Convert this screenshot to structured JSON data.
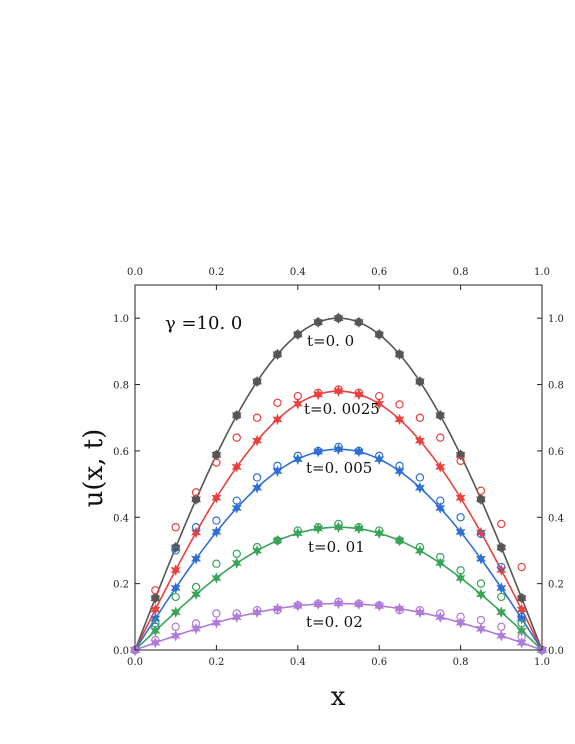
{
  "chart_data": {
    "type": "line",
    "xlabel": "x",
    "ylabel": "u(x, t)",
    "xlim": [
      0.0,
      1.0
    ],
    "ylim": [
      0.0,
      1.1
    ],
    "xticks": [
      "0.0",
      "0.2",
      "0.4",
      "0.6",
      "0.8",
      "1.0"
    ],
    "yticks": [
      "0.0",
      "0.2",
      "0.4",
      "0.6",
      "0.8",
      "1.0"
    ],
    "parameter_label": "γ =10. 0",
    "marker_x": [
      0.0,
      0.05,
      0.1,
      0.15,
      0.2,
      0.25,
      0.3,
      0.35,
      0.4,
      0.45,
      0.5,
      0.55,
      0.6,
      0.65,
      0.7,
      0.75,
      0.8,
      0.85,
      0.9,
      0.95,
      1.0
    ],
    "series": [
      {
        "label": "t=0. 0",
        "amplitude": 1.0,
        "color": "#555555",
        "open_circles": [
          0.0,
          0.157,
          0.309,
          0.454,
          0.588,
          0.707,
          0.809,
          0.891,
          0.951,
          0.988,
          1.0,
          0.988,
          0.951,
          0.891,
          0.809,
          0.707,
          0.588,
          0.454,
          0.309,
          0.157,
          0.0
        ],
        "stars": [
          0.0,
          0.156,
          0.309,
          0.454,
          0.588,
          0.707,
          0.809,
          0.891,
          0.951,
          0.988,
          1.0,
          0.988,
          0.951,
          0.891,
          0.809,
          0.707,
          0.588,
          0.454,
          0.309,
          0.156,
          0.0
        ]
      },
      {
        "label": "t=0. 0025",
        "amplitude": 0.78,
        "color": "#e8413e",
        "open_circles": [
          0.0,
          0.18,
          0.37,
          0.475,
          0.565,
          0.64,
          0.7,
          0.745,
          0.765,
          0.775,
          0.785,
          0.775,
          0.765,
          0.74,
          0.7,
          0.64,
          0.57,
          0.48,
          0.38,
          0.25,
          0.0
        ],
        "stars": [
          0.0,
          0.122,
          0.241,
          0.354,
          0.459,
          0.552,
          0.631,
          0.695,
          0.742,
          0.77,
          0.78,
          0.77,
          0.742,
          0.695,
          0.631,
          0.552,
          0.459,
          0.354,
          0.241,
          0.122,
          0.0
        ]
      },
      {
        "label": "t=0. 005",
        "amplitude": 0.605,
        "color": "#2f6fd4",
        "open_circles": [
          0.0,
          0.07,
          0.3,
          0.37,
          0.39,
          0.45,
          0.52,
          0.555,
          0.585,
          0.6,
          0.612,
          0.6,
          0.585,
          0.555,
          0.52,
          0.45,
          0.4,
          0.35,
          0.25,
          0.1,
          0.0
        ],
        "stars": [
          0.0,
          0.095,
          0.187,
          0.275,
          0.356,
          0.428,
          0.489,
          0.539,
          0.575,
          0.598,
          0.605,
          0.598,
          0.575,
          0.539,
          0.489,
          0.428,
          0.356,
          0.275,
          0.187,
          0.095,
          0.0
        ]
      },
      {
        "label": "t=0. 01",
        "amplitude": 0.37,
        "color": "#3aa35a",
        "open_circles": [
          0.0,
          0.08,
          0.16,
          0.19,
          0.26,
          0.29,
          0.31,
          0.33,
          0.36,
          0.37,
          0.38,
          0.37,
          0.36,
          0.33,
          0.31,
          0.28,
          0.24,
          0.2,
          0.16,
          0.08,
          0.0
        ],
        "stars": [
          0.0,
          0.058,
          0.114,
          0.168,
          0.217,
          0.262,
          0.299,
          0.33,
          0.352,
          0.366,
          0.37,
          0.366,
          0.352,
          0.33,
          0.299,
          0.262,
          0.217,
          0.168,
          0.114,
          0.058,
          0.0
        ]
      },
      {
        "label": "t=0. 02",
        "amplitude": 0.14,
        "color": "#b07ad8",
        "open_circles": [
          0.0,
          0.03,
          0.07,
          0.08,
          0.11,
          0.11,
          0.12,
          0.12,
          0.135,
          0.14,
          0.145,
          0.14,
          0.135,
          0.12,
          0.12,
          0.11,
          0.1,
          0.09,
          0.07,
          0.04,
          0.0
        ],
        "stars": [
          0.0,
          0.022,
          0.043,
          0.064,
          0.082,
          0.099,
          0.113,
          0.125,
          0.133,
          0.138,
          0.14,
          0.138,
          0.133,
          0.125,
          0.113,
          0.099,
          0.082,
          0.064,
          0.043,
          0.022,
          0.0
        ]
      }
    ],
    "colors": {
      "axis": "#222222",
      "background": "#ffffff"
    }
  }
}
